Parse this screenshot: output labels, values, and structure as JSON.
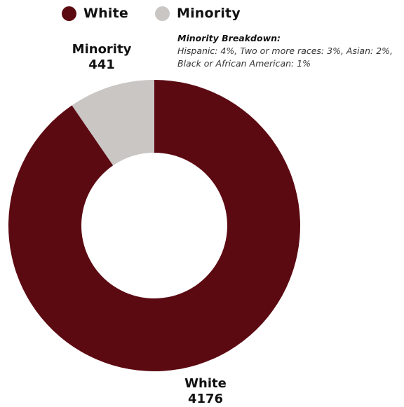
{
  "legend": {
    "items": [
      {
        "label": "White",
        "color": "#5c0a12"
      },
      {
        "label": "Minority",
        "color": "#c9c6c4"
      }
    ]
  },
  "note": {
    "title": "Minority Breakdown:",
    "text": "Hispanic: 4%, Two or more races: 3%, Asian: 2%, Black or African American: 1%"
  },
  "chart_data": {
    "type": "pie",
    "variant": "donut",
    "categories": [
      "White",
      "Minority"
    ],
    "values": [
      4176,
      441
    ],
    "colors": [
      "#5c0a12",
      "#c9c6c4"
    ],
    "data_labels": [
      {
        "category": "White",
        "value": "4176"
      },
      {
        "category": "Minority",
        "value": "441"
      }
    ],
    "legend_position": "top"
  }
}
